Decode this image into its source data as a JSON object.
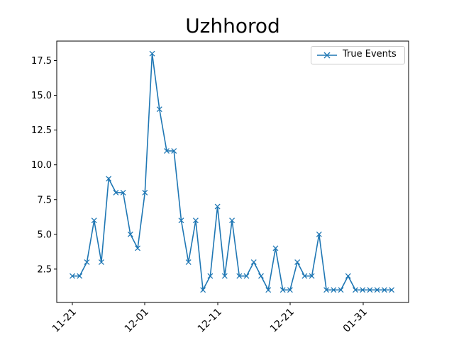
{
  "chart_data": {
    "type": "line",
    "title": "Uzhhorod",
    "xlabel": "",
    "ylabel": "",
    "x_tick_labels": [
      "11-21",
      "12-01",
      "12-11",
      "12-21",
      "01-31"
    ],
    "y_tick_labels": [
      "2.5",
      "5.0",
      "7.5",
      "10.0",
      "12.5",
      "15.0",
      "17.5"
    ],
    "ylim": [
      0.1,
      18.9
    ],
    "grid": false,
    "legend_position": "top-right",
    "series": [
      {
        "name": "True Events",
        "color": "#1f77b4",
        "marker": "x",
        "values": [
          2,
          2,
          3,
          6,
          3,
          9,
          8,
          8,
          5,
          4,
          8,
          18,
          14,
          11,
          11,
          6,
          3,
          6,
          1,
          2,
          7,
          2,
          6,
          2,
          2,
          3,
          2,
          1,
          4,
          1,
          1,
          3,
          2,
          2,
          5,
          1,
          1,
          1,
          2,
          1,
          1,
          1,
          1,
          1,
          1
        ]
      }
    ]
  }
}
